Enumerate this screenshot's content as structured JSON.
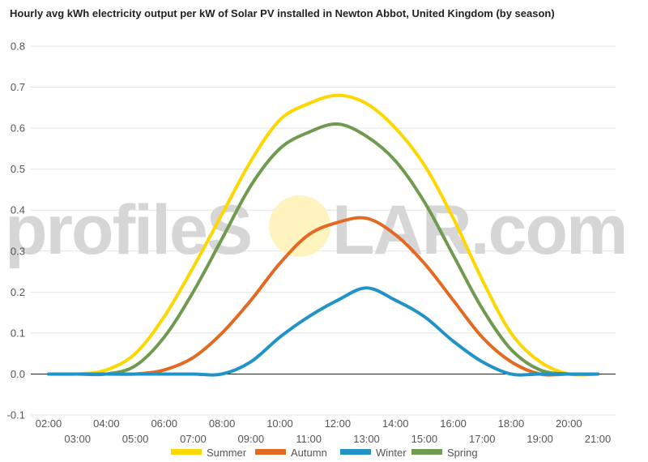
{
  "chart_data": {
    "type": "line",
    "title": "Hourly avg kWh electricity output per kW of Solar PV installed in Newton Abbot, United Kingdom (by season)",
    "xlabel": "",
    "ylabel": "",
    "ylim": [
      -0.1,
      0.8
    ],
    "yticks": [
      -0.1,
      0.0,
      0.1,
      0.2,
      0.3,
      0.4,
      0.5,
      0.6,
      0.7,
      0.8
    ],
    "ytick_labels": [
      "-0.1",
      "0.0",
      "0.1",
      "0.2",
      "0.3",
      "0.4",
      "0.5",
      "0.6",
      "0.7",
      "0.8"
    ],
    "grid": true,
    "legend_position": "bottom",
    "x_labels_upper": [
      "02:00",
      "04:00",
      "06:00",
      "08:00",
      "10:00",
      "12:00",
      "14:00",
      "16:00",
      "18:00",
      "20:00"
    ],
    "x_labels_lower": [
      "03:00",
      "05:00",
      "07:00",
      "09:00",
      "11:00",
      "13:00",
      "15:00",
      "17:00",
      "19:00",
      "21:00"
    ],
    "x_hours": [
      2,
      3,
      4,
      5,
      6,
      7,
      8,
      9,
      10,
      11,
      12,
      13,
      14,
      15,
      16,
      17,
      18,
      19,
      20,
      21
    ],
    "series": [
      {
        "name": "Summer",
        "color": "#ffd700",
        "values": [
          0.0,
          0.0,
          0.01,
          0.05,
          0.14,
          0.26,
          0.39,
          0.52,
          0.62,
          0.66,
          0.68,
          0.66,
          0.6,
          0.51,
          0.38,
          0.23,
          0.1,
          0.03,
          0.0,
          0.0
        ]
      },
      {
        "name": "Autumn",
        "color": "#e26a22",
        "values": [
          0.0,
          0.0,
          0.0,
          0.0,
          0.01,
          0.04,
          0.1,
          0.18,
          0.27,
          0.34,
          0.37,
          0.38,
          0.34,
          0.27,
          0.18,
          0.09,
          0.03,
          0.0,
          0.0,
          0.0
        ]
      },
      {
        "name": "Winter",
        "color": "#2293c6",
        "values": [
          0.0,
          0.0,
          0.0,
          0.0,
          0.0,
          0.0,
          0.0,
          0.03,
          0.09,
          0.14,
          0.18,
          0.21,
          0.18,
          0.14,
          0.08,
          0.03,
          0.0,
          0.0,
          0.0,
          0.0
        ]
      },
      {
        "name": "Spring",
        "color": "#6f9a4f",
        "values": [
          0.0,
          0.0,
          0.0,
          0.02,
          0.09,
          0.2,
          0.33,
          0.46,
          0.55,
          0.59,
          0.61,
          0.58,
          0.52,
          0.42,
          0.29,
          0.16,
          0.06,
          0.01,
          0.0,
          0.0
        ]
      }
    ]
  },
  "watermark": {
    "text_pre": "profileS",
    "text_post": "LAR.com",
    "sun_color": "#fff3c0"
  }
}
